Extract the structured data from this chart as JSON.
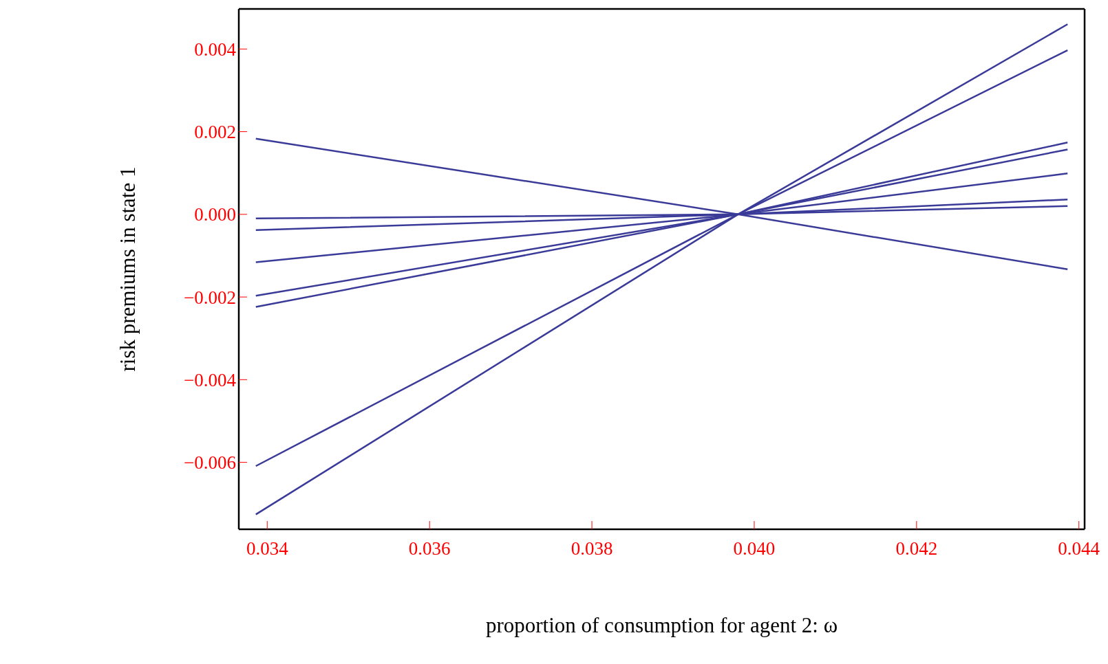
{
  "chart_data": {
    "type": "line",
    "xlabel": "proportion of consumption for agent 2:  ω",
    "ylabel": "risk premiums in state 1",
    "xlim": [
      0.03365,
      0.04407
    ],
    "ylim": [
      -0.00762,
      0.00497
    ],
    "xticks": [
      {
        "value": 0.034,
        "label": "0.034"
      },
      {
        "value": 0.036,
        "label": "0.036"
      },
      {
        "value": 0.038,
        "label": "0.038"
      },
      {
        "value": 0.04,
        "label": "0.040"
      },
      {
        "value": 0.042,
        "label": "0.042"
      },
      {
        "value": 0.044,
        "label": "0.044"
      }
    ],
    "yticks": [
      {
        "value": -0.006,
        "label": "−0.006"
      },
      {
        "value": -0.004,
        "label": "−0.004"
      },
      {
        "value": -0.002,
        "label": "−0.002"
      },
      {
        "value": 0,
        "label": "0.000"
      },
      {
        "value": 0.002,
        "label": "0.002"
      },
      {
        "value": 0.004,
        "label": "0.004"
      }
    ],
    "x": [
      0.03386,
      0.0398,
      0.04386
    ],
    "grid": false,
    "legend": false,
    "marker": "none",
    "line_style": "solid",
    "series": [
      {
        "color": "#3a3a98",
        "values": [
          0.00183,
          0,
          -0.00133
        ]
      },
      {
        "color": "#3a3a98",
        "values": [
          -0.0001,
          0,
          0.0002
        ]
      },
      {
        "color": "#3a3a98",
        "values": [
          -0.00038,
          0,
          0.00036
        ]
      },
      {
        "color": "#3a3a98",
        "values": [
          -0.00116,
          0,
          0.00099
        ]
      },
      {
        "color": "#3a3a98",
        "values": [
          -0.00197,
          0,
          0.00157
        ]
      },
      {
        "color": "#3a3a98",
        "values": [
          -0.00224,
          0,
          0.00174
        ]
      },
      {
        "color": "#3a3a98",
        "values": [
          -0.00609,
          0,
          0.00397
        ]
      },
      {
        "color": "#3a3a98",
        "values": [
          -0.00726,
          0,
          0.0046
        ]
      }
    ]
  }
}
